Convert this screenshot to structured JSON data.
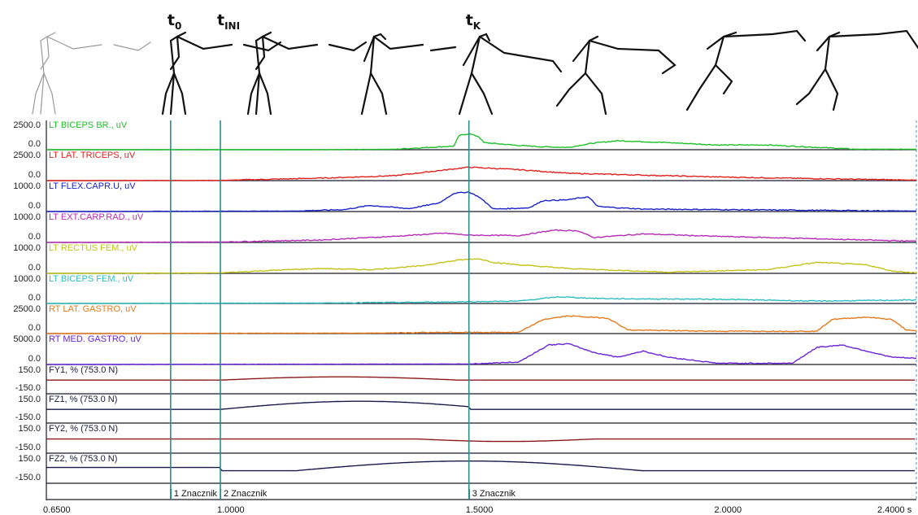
{
  "markers": [
    {
      "label": "t",
      "sub": "0",
      "time": 0.9,
      "name": "1 Znacznik"
    },
    {
      "label": "t",
      "sub": "INI",
      "time": 1.0,
      "name": "2 Znacznik"
    },
    {
      "label": "t",
      "sub": "K",
      "time": 1.5,
      "name": "3 Znacznik"
    }
  ],
  "x_axis": {
    "range": [
      0.65,
      2.4
    ],
    "ticks": [
      {
        "value": 0.65,
        "label": "0.6500"
      },
      {
        "value": 1.0,
        "label": "1.0000"
      },
      {
        "value": 1.5,
        "label": "1.5000"
      },
      {
        "value": 2.0,
        "label": "2.0000"
      },
      {
        "value": 2.4,
        "label": "2.4000 s"
      }
    ]
  },
  "channels": [
    {
      "name": "LT BICEPS BR., uV",
      "ymax_label": "2500.0",
      "ymin_label": "0.0",
      "color": "#1fbf2a",
      "kind": "emg"
    },
    {
      "name": "LT LAT. TRICEPS, uV",
      "ymax_label": "2500.0",
      "ymin_label": "0.0",
      "color": "#e2201c",
      "kind": "emg"
    },
    {
      "name": "LT FLEX.CAPR.U, uV",
      "ymax_label": "1000.0",
      "ymin_label": "0.0",
      "color": "#1a22c6",
      "kind": "emg"
    },
    {
      "name": "LT EXT.CARP.RAD., uV",
      "ymax_label": "1000.0",
      "ymin_label": "0.0",
      "color": "#b52ab5",
      "kind": "emg"
    },
    {
      "name": "LT RECTUS FEM., uV",
      "ymax_label": "1000.0",
      "ymin_label": "0.0",
      "color": "#c4c21a",
      "kind": "emg"
    },
    {
      "name": "LT BICEPS FEM., uV",
      "ymax_label": "1000.0",
      "ymin_label": "0.0",
      "color": "#2cbdbf",
      "kind": "emg"
    },
    {
      "name": "RT LAT. GASTRO, uV",
      "ymax_label": "2500.0",
      "ymin_label": "0.0",
      "color": "#e57a1c",
      "kind": "emg"
    },
    {
      "name": "RT MED. GASTRO, uV",
      "ymax_label": "5000.0",
      "ymin_label": "0.0",
      "color": "#6a22d6",
      "kind": "emg"
    },
    {
      "name": "FY1, % (753.0 N)",
      "ymax_label": "150.0",
      "ymin_label": "-150.0",
      "color": "#8a1a1a",
      "kind": "force"
    },
    {
      "name": "FZ1, % (753.0 N)",
      "ymax_label": "150.0",
      "ymin_label": "-150.0",
      "color": "#1a1a4a",
      "kind": "force"
    },
    {
      "name": "FY2, % (753.0 N)",
      "ymax_label": "150.0",
      "ymin_label": "-150.0",
      "color": "#8a1a1a",
      "kind": "force"
    },
    {
      "name": "FZ2, % (753.0 N)",
      "ymax_label": "150.0",
      "ymin_label": "-150.0",
      "color": "#1a1a4a",
      "kind": "force"
    }
  ],
  "colors": {
    "marker": "#2a8d8a",
    "grid": "#1a1a2a"
  }
}
